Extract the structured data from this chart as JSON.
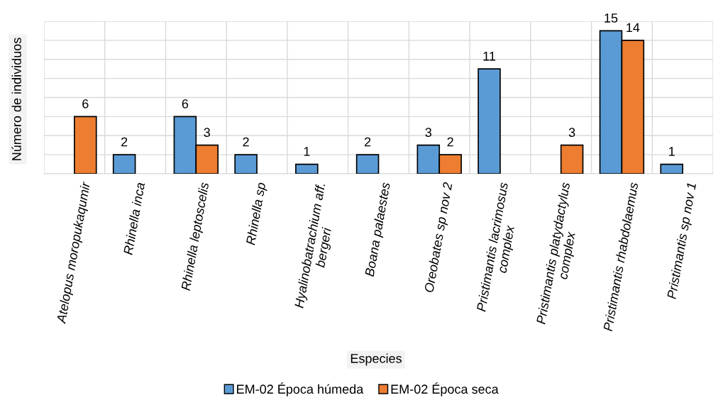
{
  "chart_data": {
    "type": "bar",
    "xlabel": "Especies",
    "ylabel": "Número de individuos",
    "categories": [
      "Atelopus moropukaqumir",
      "Rhinella inca",
      "Rhinella leptoscelis",
      "Rhinella sp",
      "Hyalinobatrachium aff.\nbergeri",
      "Boana palaestes",
      "Oreobates sp nov 2",
      "Pristimantis lacrimosus\ncomplex",
      "Pristimantis platydactylus\ncomplex",
      "Pristimantis rhabdolaemus",
      "Pristimantis sp nov 1"
    ],
    "series": [
      {
        "name": "EM-02 Época húmeda",
        "color": "#5b9bd5",
        "values": [
          null,
          2,
          6,
          2,
          1,
          2,
          3,
          11,
          null,
          15,
          1
        ]
      },
      {
        "name": "EM-02 Época seca",
        "color": "#ed7d31",
        "values": [
          6,
          null,
          3,
          null,
          null,
          null,
          2,
          null,
          3,
          14,
          null
        ]
      }
    ],
    "ylim": [
      0,
      16
    ],
    "yticks": [
      0,
      2,
      4,
      6,
      8,
      10,
      12,
      14,
      16
    ],
    "tick_labels": "x",
    "grid": true,
    "legend": "bottom",
    "data_labels": true
  }
}
